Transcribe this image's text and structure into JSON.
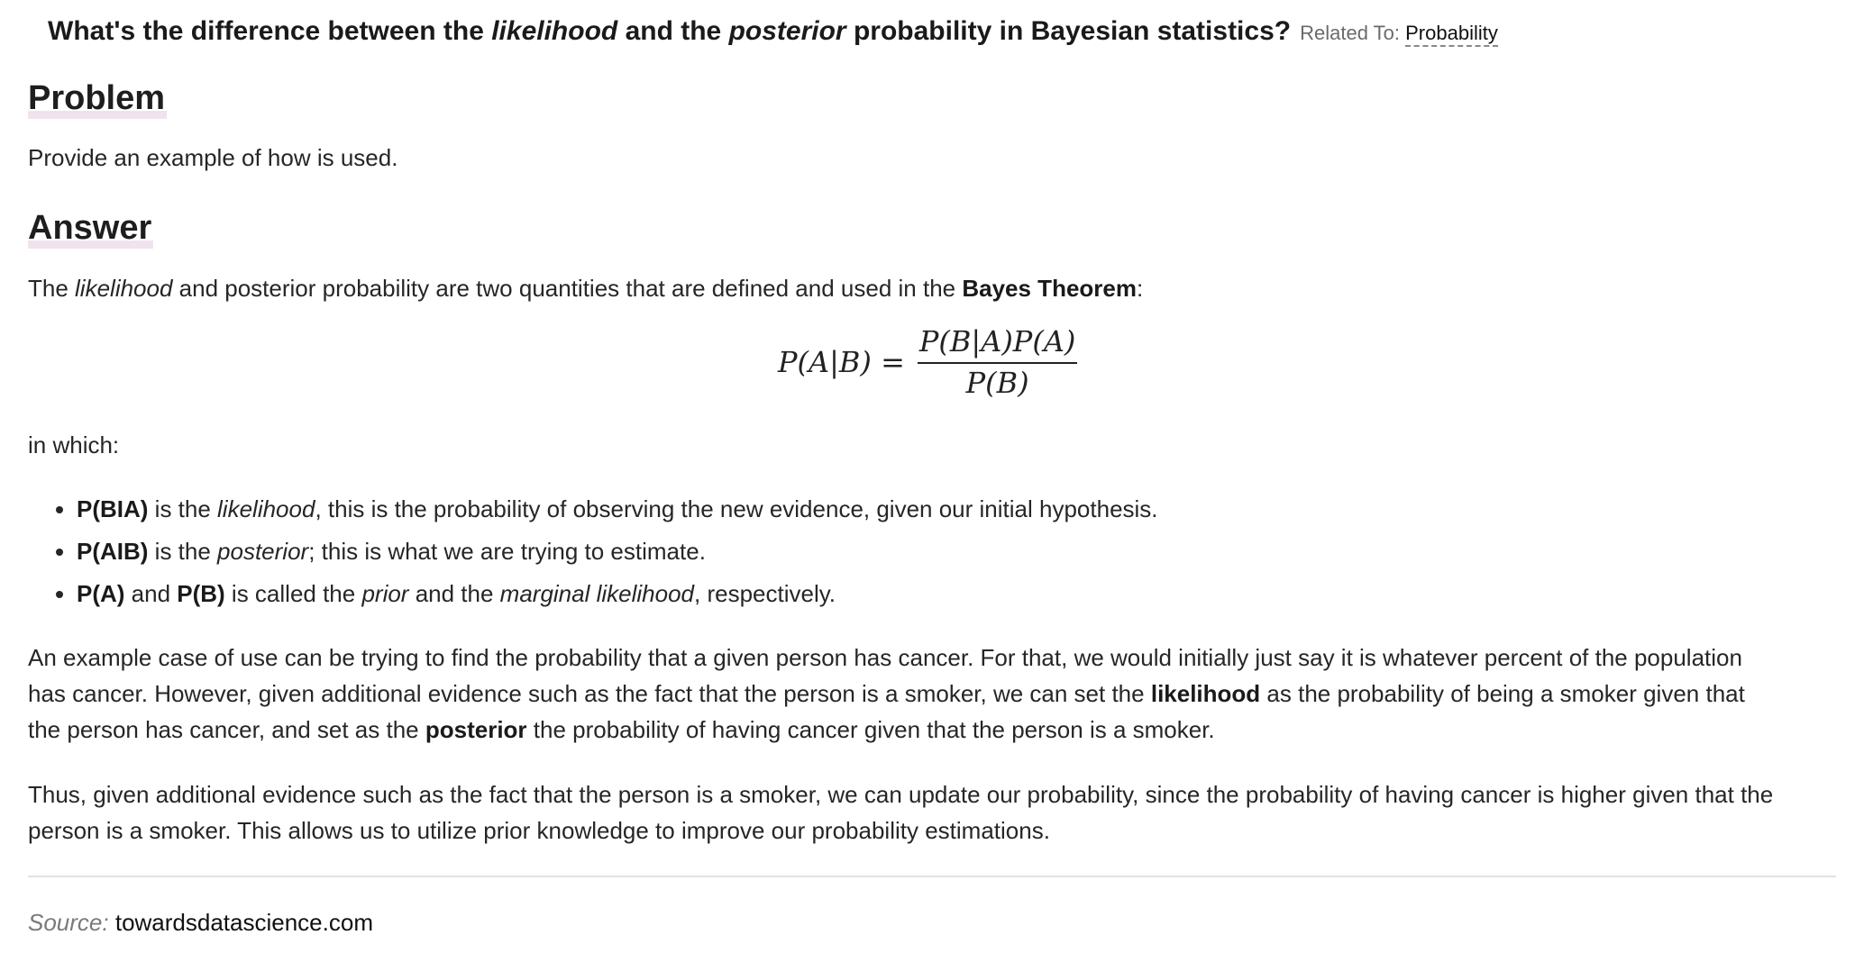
{
  "question": {
    "title_part1": "What's the difference between the ",
    "title_em1": "likelihood",
    "title_part2": " and the ",
    "title_em2": "posterior",
    "title_part3": " probability in Bayesian statistics?",
    "related_label": "Related To:",
    "related_link": "Probability"
  },
  "problem": {
    "heading": "Problem",
    "text": "Provide an example of how is used."
  },
  "answer": {
    "heading": "Answer",
    "intro": {
      "t1": "The ",
      "em1": "likelihood",
      "t2": " and posterior probability are two quantities that are defined and used in the ",
      "b1": "Bayes Theorem",
      "t3": ":"
    },
    "formula": {
      "lhs": "P(A|B) =",
      "numerator": "P(B|A)P(A)",
      "denominator": "P(B)"
    },
    "in_which": "in which:",
    "bullets": [
      {
        "b1": "P(BIA)",
        "t1": " is the ",
        "em1": "likelihood",
        "t2": ", this is the probability of observing the new evidence, given our initial hypothesis."
      },
      {
        "b1": "P(AIB)",
        "t1": " is the ",
        "em1": "posterior",
        "t2": "; this is what we are trying to estimate."
      },
      {
        "b1": "P(A)",
        "t1": " and ",
        "b2": "P(B)",
        "t2": " is called the ",
        "em1": "prior",
        "t3": " and the ",
        "em2": "marginal likelihood",
        "t4": ", respectively."
      }
    ],
    "example": {
      "line1": "An example case of use can be trying to find the probability that a given person has cancer. For that, we would initially just say it is whatever percent of the population",
      "line2a": "has cancer. However, given additional evidence such as the fact that the person is a smoker, we can set the ",
      "line2b": "likelihood",
      "line2c": " as the probability of being a smoker given that",
      "line3a": "the person has cancer, and set as the ",
      "line3b": "posterior",
      "line3c": " the probability of having cancer given that the person is a smoker."
    },
    "conclusion": {
      "line1": "Thus, given additional evidence such as the fact that the person is a smoker, we can update our probability, since the probability of having cancer is higher given that the",
      "line2": "person is a smoker. This allows us to utilize prior knowledge to improve our probability estimations."
    }
  },
  "source": {
    "label": "Source:",
    "value": "towardsdatascience.com"
  }
}
